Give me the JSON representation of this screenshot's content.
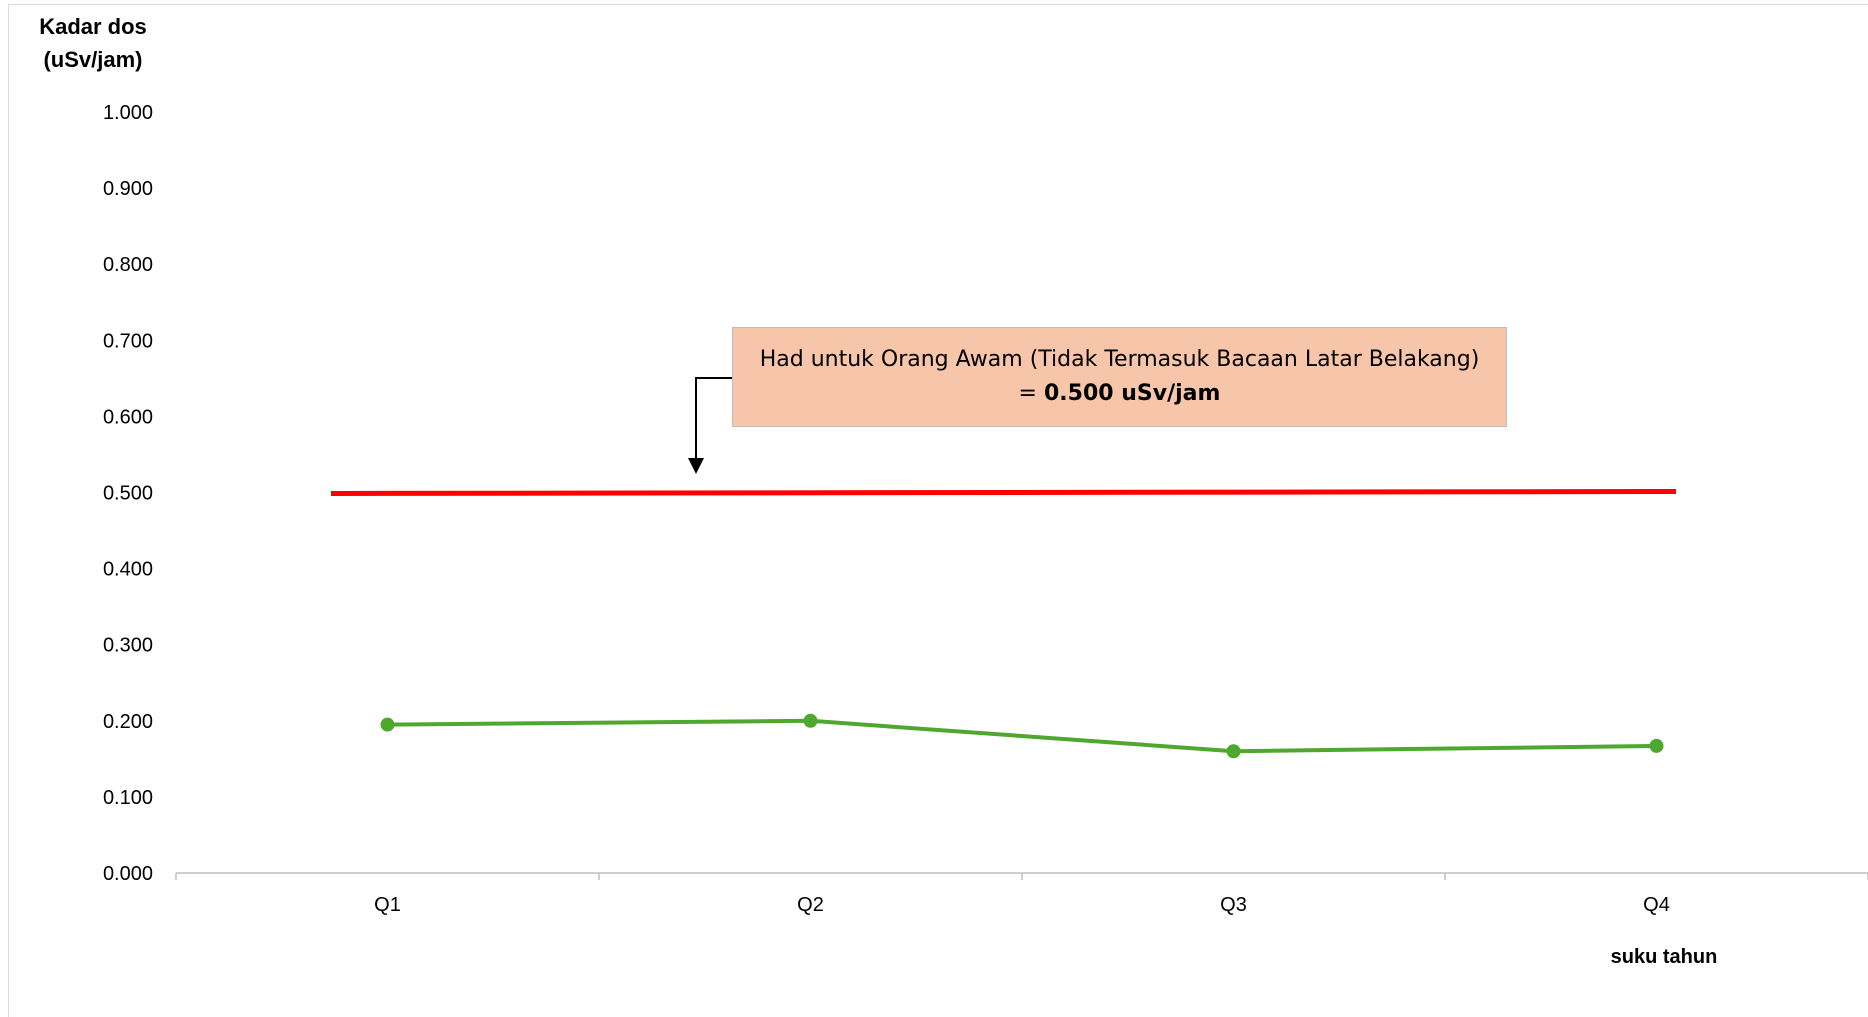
{
  "chart_data": {
    "type": "line",
    "ylabel_line1": "Kadar dos",
    "ylabel_line2": "(uSv/jam)",
    "xlabel": "suku tahun",
    "categories": [
      "Q1",
      "Q2",
      "Q3",
      "Q4"
    ],
    "yticks": [
      "0.000",
      "0.100",
      "0.200",
      "0.300",
      "0.400",
      "0.500",
      "0.600",
      "0.700",
      "0.800",
      "0.900",
      "1.000"
    ],
    "ylim": [
      0,
      1.0
    ],
    "grid": false,
    "series": [
      {
        "values": [
          0.195,
          0.2,
          0.16,
          0.167
        ],
        "color": "#4ea72e"
      }
    ],
    "reference_line": {
      "value": 0.5,
      "color": "#ff0000"
    },
    "annotation": {
      "line1": "Had untuk Orang Awam (Tidak Termasuk Bacaan Latar Belakang)",
      "line2_prefix": "= ",
      "line2_bold": "0.500 uSv/jam",
      "fill": "#f7c6aa"
    }
  }
}
